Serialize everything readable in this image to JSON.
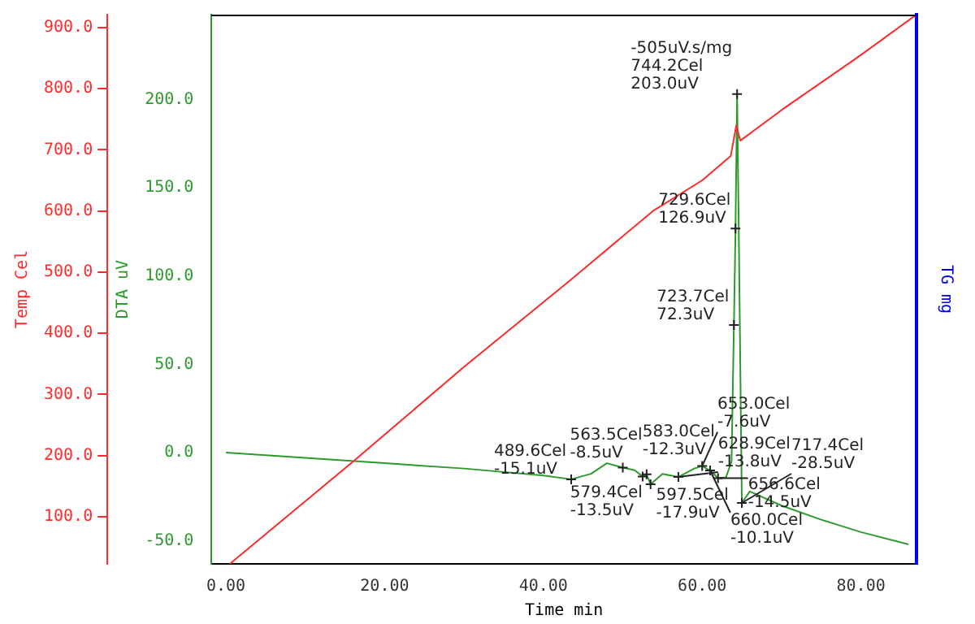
{
  "chart_data": {
    "type": "line",
    "xlabel": "Time min",
    "ylabel": "DTA uV",
    "y2label": "Temp Cel",
    "y3label": "TG mg",
    "xlim": [
      -1.8,
      87
    ],
    "xticks": [
      {
        "value": 0,
        "label": "0.00"
      },
      {
        "value": 20,
        "label": "20.00"
      },
      {
        "value": 40,
        "label": "40.00"
      },
      {
        "value": 60,
        "label": "60.00"
      },
      {
        "value": 80,
        "label": "80.00"
      }
    ],
    "y2lim": [
      23,
      921
    ],
    "y2ticks": [
      {
        "value": 100,
        "label": "100.0"
      },
      {
        "value": 200,
        "label": "200.0"
      },
      {
        "value": 300,
        "label": "300.0"
      },
      {
        "value": 400,
        "label": "400.0"
      },
      {
        "value": 500,
        "label": "500.0"
      },
      {
        "value": 600,
        "label": "600.0"
      },
      {
        "value": 700,
        "label": "700.0"
      },
      {
        "value": 800,
        "label": "800.0"
      },
      {
        "value": 900,
        "label": "900.0"
      }
    ],
    "ylim": [
      -63,
      248
    ],
    "yticks": [
      {
        "value": -50,
        "label": "-50.0"
      },
      {
        "value": 0,
        "label": "0.0"
      },
      {
        "value": 50,
        "label": "50.0"
      },
      {
        "value": 100,
        "label": "100.0"
      },
      {
        "value": 150,
        "label": "150.0"
      },
      {
        "value": 200,
        "label": "200.0"
      }
    ],
    "grid": false,
    "legend": false,
    "marker": "none",
    "line_style": "solid",
    "series": [
      {
        "color": "#ff2a2a",
        "axis": "y2",
        "x": [
          0.5,
          16,
          30,
          43.5,
          53.8,
          60,
          63.6,
          64.3,
          64.8,
          70,
          80,
          87
        ],
        "values": [
          23,
          190,
          345,
          488,
          600,
          650,
          690,
          740,
          715,
          765,
          855,
          921
        ]
      },
      {
        "color": "#2e9a2e",
        "axis": "y",
        "x": [
          0,
          10,
          20,
          30,
          40,
          43.5,
          46,
          48,
          50,
          51.5,
          52.5,
          53,
          53.5,
          55,
          57,
          59,
          60,
          61,
          62,
          63,
          63.7,
          64,
          64.2,
          64.4,
          64.6,
          64.8,
          65,
          66,
          70,
          75,
          80,
          86
        ],
        "values": [
          0,
          -3,
          -6,
          -9,
          -13,
          -15.1,
          -12,
          -6,
          -8.5,
          -10,
          -13.5,
          -12.3,
          -17.9,
          -12,
          -13.8,
          -9,
          -7.6,
          -10.1,
          -14.5,
          -14,
          -5,
          72.3,
          126.9,
          203,
          130,
          50,
          -28.5,
          -22,
          -30,
          -38,
          -45,
          -52
        ]
      }
    ],
    "annotations": [
      {
        "text": "-505uV.s/mg\n744.2Cel\n203.0uV",
        "x": 64.4,
        "y": 203
      },
      {
        "text": "729.6Cel\n126.9uV",
        "x": 64.2,
        "y": 126.9
      },
      {
        "text": "723.7Cel\n72.3uV",
        "x": 64,
        "y": 72.3
      },
      {
        "text": "489.6Cel\n-15.1uV",
        "x": 43.5,
        "y": -15.1
      },
      {
        "text": "563.5Cel\n-8.5uV",
        "x": 50,
        "y": -8.5
      },
      {
        "text": "579.4Cel\n-13.5uV",
        "x": 52.5,
        "y": -13.5
      },
      {
        "text": "583.0Cel\n-12.3uV",
        "x": 53,
        "y": -12.3
      },
      {
        "text": "597.5Cel\n-17.9uV",
        "x": 53.5,
        "y": -17.9
      },
      {
        "text": "628.9Cel\n-13.8uV",
        "x": 57,
        "y": -13.8
      },
      {
        "text": "653.0Cel\n-7.6uV",
        "x": 60,
        "y": -7.6
      },
      {
        "text": "656.6Cel\n-14.5uV",
        "x": 62,
        "y": -14.5
      },
      {
        "text": "660.0Cel\n-10.1uV",
        "x": 61,
        "y": -10.1
      },
      {
        "text": "717.4Cel\n-28.5uV",
        "x": 65,
        "y": -28.5
      }
    ]
  }
}
